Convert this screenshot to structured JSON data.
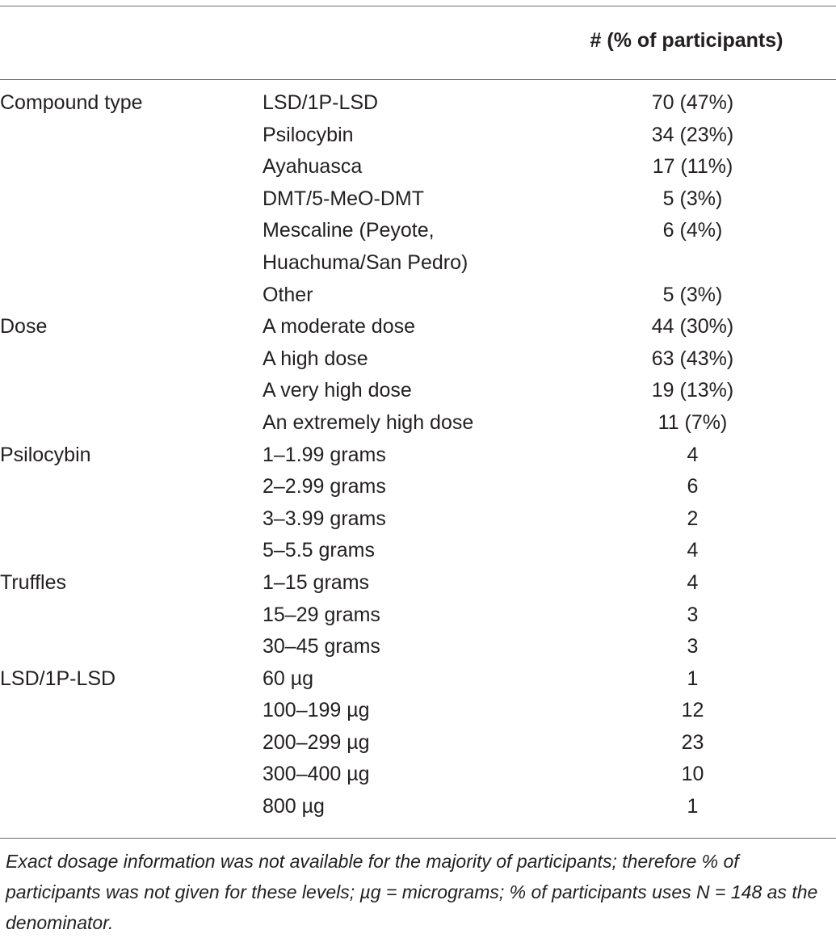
{
  "table": {
    "header": {
      "value_column": "# (% of participants)"
    },
    "rows": [
      {
        "category": "Compound type",
        "item": "LSD/1P-LSD",
        "value": "70 (47%)"
      },
      {
        "category": "",
        "item": "Psilocybin",
        "value": "34 (23%)"
      },
      {
        "category": "",
        "item": "Ayahuasca",
        "value": "17 (11%)"
      },
      {
        "category": "",
        "item": "DMT/5-MeO-DMT",
        "value": "5 (3%)"
      },
      {
        "category": "",
        "item": "Mescaline (Peyote,",
        "item_line2": "Huachuma/San Pedro)",
        "value": "6 (4%)"
      },
      {
        "category": "",
        "item": "Other",
        "value": "5 (3%)"
      },
      {
        "category": "Dose",
        "item": "A moderate dose",
        "value": "44 (30%)"
      },
      {
        "category": "",
        "item": "A high dose",
        "value": "63 (43%)"
      },
      {
        "category": "",
        "item": "A very high dose",
        "value": "19 (13%)"
      },
      {
        "category": "",
        "item": "An extremely high dose",
        "value": "11 (7%)"
      },
      {
        "category": "Psilocybin",
        "item": "1–1.99 grams",
        "value": "4"
      },
      {
        "category": "",
        "item": "2–2.99 grams",
        "value": "6"
      },
      {
        "category": "",
        "item": "3–3.99 grams",
        "value": "2"
      },
      {
        "category": "",
        "item": "5–5.5 grams",
        "value": "4"
      },
      {
        "category": "Truffles",
        "item": "1–15 grams",
        "value": "4"
      },
      {
        "category": "",
        "item": "15–29 grams",
        "value": "3"
      },
      {
        "category": "",
        "item": "30–45 grams",
        "value": "3"
      },
      {
        "category": "LSD/1P-LSD",
        "item": "60 µg",
        "value": "1"
      },
      {
        "category": "",
        "item": "100–199 µg",
        "value": "12"
      },
      {
        "category": "",
        "item": "200–299 µg",
        "value": "23"
      },
      {
        "category": "",
        "item": "300–400 µg",
        "value": "10"
      },
      {
        "category": "",
        "item": "800 µg",
        "value": "1"
      }
    ]
  },
  "footnote": "Exact dosage information was not available for the majority of participants; therefore % of participants was not given for these levels; µg = micrograms; % of participants uses N = 148 as the denominator."
}
